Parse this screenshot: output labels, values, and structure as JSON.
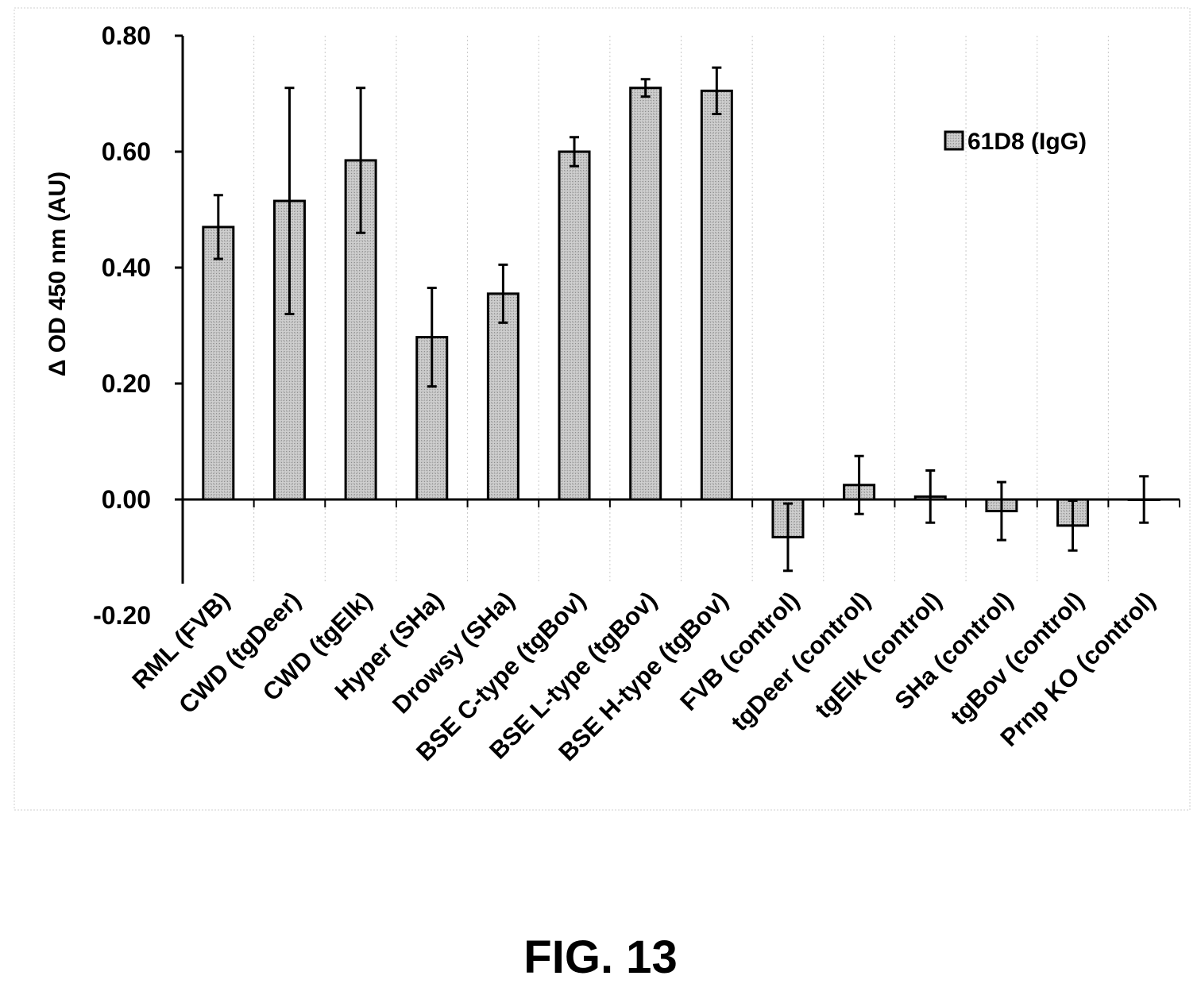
{
  "figure": {
    "caption": "FIG. 13"
  },
  "chart_data": {
    "type": "bar",
    "title": "",
    "xlabel": "",
    "ylabel": "Δ OD 450 nm (AU)",
    "ylim": [
      -0.2,
      0.8
    ],
    "yticks": [
      "0.80",
      "0.60",
      "0.40",
      "0.20",
      "0.00",
      "-0.20"
    ],
    "ytick_values": [
      0.8,
      0.6,
      0.4,
      0.2,
      0.0,
      -0.2
    ],
    "grid": {
      "vertical": true,
      "horizontal": false
    },
    "legend": {
      "position": "top-right"
    },
    "categories": [
      "RML (FVB)",
      "CWD (tgDeer)",
      "CWD (tgElk)",
      "Hyper (SHa)",
      "Drowsy (SHa)",
      "BSE C-type (tgBov)",
      "BSE L-type (tgBov)",
      "BSE H-type (tgBov)",
      "FVB (control)",
      "tgDeer (control)",
      "tgElk (control)",
      "SHa (control)",
      "tgBov (control)",
      "Prnp KO (control)"
    ],
    "series": [
      {
        "name": "61D8 (IgG)",
        "color": "#b8b8b8",
        "values": [
          0.47,
          0.515,
          0.585,
          0.28,
          0.355,
          0.6,
          0.71,
          0.705,
          -0.065,
          0.025,
          0.005,
          -0.02,
          -0.045,
          0.0
        ],
        "errors": [
          0.055,
          0.195,
          0.125,
          0.085,
          0.05,
          0.025,
          0.015,
          0.04,
          0.058,
          0.05,
          0.045,
          0.05,
          0.043,
          0.04
        ]
      }
    ]
  }
}
